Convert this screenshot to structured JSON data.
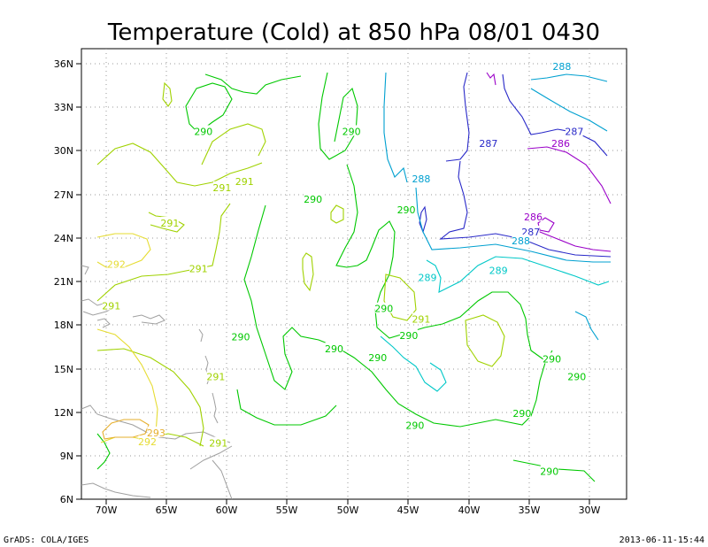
{
  "title": "Temperature (Cold) at 850 hPa 08/01 0430",
  "footer_left": "GrADS: COLA/IGES",
  "footer_right": "2013-06-11-15:44",
  "axes": {
    "lon_ticks": [
      "70W",
      "65W",
      "60W",
      "55W",
      "50W",
      "45W",
      "40W",
      "35W",
      "30W"
    ],
    "lat_ticks": [
      "36N",
      "33N",
      "30N",
      "27N",
      "24N",
      "21N",
      "18N",
      "15N",
      "12N",
      "9N",
      "6N"
    ],
    "lon_range": [
      -72.3,
      -28.5
    ],
    "lat_range": [
      6,
      36.5
    ]
  },
  "colors": {
    "c286": "#9a00c8",
    "c287": "#2828c8",
    "c288": "#00a0d0",
    "c289": "#00c8c8",
    "c290": "#00c800",
    "c291": "#a0d200",
    "c292": "#e6dc32",
    "c293": "#e6af2d",
    "coast": "#a0a0a0"
  },
  "contour_labels": [
    {
      "text": "288",
      "lon": -33.7,
      "lat": 35.3,
      "color": "c288"
    },
    {
      "text": "287",
      "lon": -32.7,
      "lat": 30.9,
      "color": "c287"
    },
    {
      "text": "286",
      "lon": -33.8,
      "lat": 30.1,
      "color": "c286"
    },
    {
      "text": "287",
      "lon": -39.6,
      "lat": 30.1,
      "color": "c287"
    },
    {
      "text": "288",
      "lon": -45.0,
      "lat": 27.7,
      "color": "c288"
    },
    {
      "text": "286",
      "lon": -36.0,
      "lat": 25.1,
      "color": "c286"
    },
    {
      "text": "287",
      "lon": -36.2,
      "lat": 24.1,
      "color": "c287"
    },
    {
      "text": "288",
      "lon": -37.0,
      "lat": 23.5,
      "color": "c288"
    },
    {
      "text": "289",
      "lon": -38.8,
      "lat": 21.5,
      "color": "c289"
    },
    {
      "text": "289",
      "lon": -44.5,
      "lat": 21.0,
      "color": "c289"
    },
    {
      "text": "290",
      "lon": -50.6,
      "lat": 30.9,
      "color": "c290"
    },
    {
      "text": "290",
      "lon": -53.7,
      "lat": 26.3,
      "color": "c290"
    },
    {
      "text": "290",
      "lon": -46.2,
      "lat": 25.6,
      "color": "c290"
    },
    {
      "text": "290",
      "lon": -62.5,
      "lat": 30.9,
      "color": "c290"
    },
    {
      "text": "290",
      "lon": -48.0,
      "lat": 18.9,
      "color": "c290"
    },
    {
      "text": "290",
      "lon": -46.0,
      "lat": 17.1,
      "color": "c290"
    },
    {
      "text": "290",
      "lon": -52.0,
      "lat": 16.2,
      "color": "c290"
    },
    {
      "text": "290",
      "lon": -48.5,
      "lat": 15.6,
      "color": "c290"
    },
    {
      "text": "290",
      "lon": -59.5,
      "lat": 17.0,
      "color": "c290"
    },
    {
      "text": "290",
      "lon": -34.5,
      "lat": 15.5,
      "color": "c290"
    },
    {
      "text": "290",
      "lon": -32.5,
      "lat": 14.3,
      "color": "c290"
    },
    {
      "text": "290",
      "lon": -36.9,
      "lat": 11.8,
      "color": "c290"
    },
    {
      "text": "290",
      "lon": -45.5,
      "lat": 11.0,
      "color": "c290"
    },
    {
      "text": "290",
      "lon": -34.7,
      "lat": 7.9,
      "color": "c290"
    },
    {
      "text": "291",
      "lon": -61.0,
      "lat": 27.1,
      "color": "c291"
    },
    {
      "text": "291",
      "lon": -59.2,
      "lat": 27.5,
      "color": "c291"
    },
    {
      "text": "291",
      "lon": -65.2,
      "lat": 24.7,
      "color": "c291"
    },
    {
      "text": "291",
      "lon": -62.9,
      "lat": 21.6,
      "color": "c291"
    },
    {
      "text": "291",
      "lon": -69.9,
      "lat": 19.1,
      "color": "c291"
    },
    {
      "text": "291",
      "lon": -45.0,
      "lat": 18.2,
      "color": "c291"
    },
    {
      "text": "291",
      "lon": -61.5,
      "lat": 14.3,
      "color": "c291"
    },
    {
      "text": "291",
      "lon": -61.3,
      "lat": 9.8,
      "color": "c291"
    },
    {
      "text": "292",
      "lon": -69.5,
      "lat": 21.9,
      "color": "c292"
    },
    {
      "text": "292",
      "lon": -67.0,
      "lat": 9.9,
      "color": "c292"
    },
    {
      "text": "293",
      "lon": -66.3,
      "lat": 10.5,
      "color": "c293"
    }
  ]
}
